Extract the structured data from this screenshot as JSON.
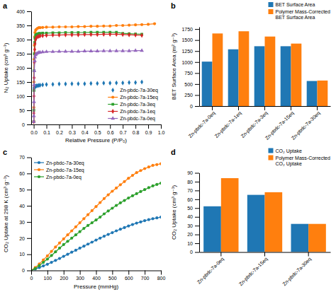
{
  "chart_data": [
    {
      "type": "line",
      "title": "a",
      "x_label": "Relative Pressure (P/P₀)",
      "y_label": "N₂ Uptake (cm³ g⁻¹)",
      "xlim": [
        -0.02,
        1.0
      ],
      "ylim": [
        0,
        400
      ],
      "xticks": [
        {
          "value": 0,
          "label": "0.0"
        },
        0.1,
        0.2,
        0.3,
        0.4,
        0.5,
        0.6,
        0.7,
        0.8,
        0.9,
        {
          "value": 1,
          "label": "1.0"
        }
      ],
      "yticks": [
        0,
        50,
        100,
        150,
        200,
        250,
        300,
        350,
        400
      ],
      "legend": "lower right",
      "series": [
        {
          "name": "Zn-pbdc-7a-30eq",
          "type": "scatter",
          "marker": "diamond",
          "x": [
            0.001,
            0.002,
            0.003,
            0.005,
            0.008,
            0.01,
            0.015,
            0.02,
            0.03,
            0.04,
            0.05,
            0.07,
            0.1,
            0.15,
            0.2,
            0.25,
            0.3,
            0.35,
            0.4,
            0.45,
            0.5,
            0.55,
            0.6,
            0.65,
            0.7,
            0.75,
            0.8,
            0.85
          ],
          "values": [
            120,
            127,
            130,
            132,
            133,
            134,
            135,
            136,
            137,
            138,
            139,
            140,
            141,
            142,
            143,
            143,
            144,
            144,
            144,
            145,
            145,
            146,
            146,
            147,
            147,
            148,
            148,
            150
          ]
        },
        {
          "name": "Zn-pbdc-7a-15eq",
          "marker": "circle",
          "x": [
            0.0005,
            0.001,
            0.002,
            0.003,
            0.005,
            0.008,
            0.01,
            0.015,
            0.02,
            0.03,
            0.04,
            0.05,
            0.07,
            0.1,
            0.15,
            0.2,
            0.25,
            0.3,
            0.35,
            0.4,
            0.45,
            0.5,
            0.55,
            0.6,
            0.65,
            0.7,
            0.75,
            0.8,
            0.85,
            0.9,
            0.95
          ],
          "values": [
            10,
            60,
            150,
            230,
            280,
            310,
            325,
            333,
            336,
            340,
            342,
            342,
            343,
            344,
            344,
            345,
            345,
            345,
            346,
            346,
            347,
            347,
            348,
            348,
            350,
            350,
            351,
            352,
            353,
            354,
            356
          ]
        },
        {
          "name": "Zn-pbdc-7a-3eq",
          "marker": "square",
          "x": [
            0.0005,
            0.001,
            0.002,
            0.003,
            0.005,
            0.008,
            0.01,
            0.015,
            0.02,
            0.03,
            0.04,
            0.05,
            0.07,
            0.1,
            0.15,
            0.2,
            0.25,
            0.3,
            0.35,
            0.4,
            0.45,
            0.5,
            0.55,
            0.6,
            0.65,
            0.7,
            0.75,
            0.8,
            0.85
          ],
          "values": [
            10,
            50,
            120,
            190,
            250,
            290,
            305,
            315,
            318,
            320,
            322,
            322,
            323,
            323,
            324,
            324,
            325,
            325,
            325,
            325,
            326,
            326,
            326,
            326,
            326,
            322,
            321,
            320,
            319
          ]
        },
        {
          "name": "Zn-pbdc-7a-1eq",
          "marker": "diamond",
          "x": [
            0.0005,
            0.001,
            0.002,
            0.003,
            0.005,
            0.008,
            0.01,
            0.015,
            0.02,
            0.03,
            0.04,
            0.05,
            0.07,
            0.1,
            0.15,
            0.2,
            0.25,
            0.3,
            0.35,
            0.4,
            0.45,
            0.5,
            0.55,
            0.6,
            0.65,
            0.7,
            0.75,
            0.8,
            0.85
          ],
          "values": [
            10,
            40,
            100,
            165,
            220,
            265,
            285,
            300,
            306,
            310,
            312,
            313,
            314,
            315,
            316,
            316,
            317,
            317,
            317,
            318,
            318,
            318,
            319,
            319,
            319,
            318,
            317,
            316,
            315
          ]
        },
        {
          "name": "Zn-pbdc-7a-0eq",
          "marker": "triangle",
          "x": [
            0.0005,
            0.001,
            0.002,
            0.003,
            0.005,
            0.008,
            0.01,
            0.015,
            0.02,
            0.03,
            0.04,
            0.05,
            0.07,
            0.1,
            0.15,
            0.2,
            0.25,
            0.3,
            0.35,
            0.4,
            0.45,
            0.5,
            0.55,
            0.6,
            0.65,
            0.7,
            0.75,
            0.8,
            0.85
          ],
          "values": [
            10,
            30,
            80,
            140,
            190,
            225,
            238,
            246,
            250,
            252,
            254,
            255,
            256,
            257,
            257,
            258,
            258,
            258,
            258,
            259,
            259,
            259,
            260,
            260,
            260,
            260,
            260,
            261,
            261
          ]
        }
      ]
    },
    {
      "type": "bar",
      "title": "b",
      "y_label": "BET Surface Area (m² g⁻¹)",
      "ylim": [
        0,
        1800
      ],
      "yticks": [
        0,
        250,
        500,
        750,
        1000,
        1250,
        1500,
        1750
      ],
      "categories": [
        "Zn-pbdc-7a-0eq",
        "Zn-pbdc-7a-1eq",
        "Zn-pbdc-7a-3eq",
        "Zn-pbdc-7a-15eq",
        "Zn-pbdc-7a-30eq"
      ],
      "legend": "upper right",
      "series": [
        {
          "name": "BET Surface Area",
          "values": [
            1010,
            1290,
            1360,
            1360,
            570
          ]
        },
        {
          "name": "Polymer Mass-Corrected\nBET Surface Area",
          "values": [
            1650,
            1700,
            1580,
            1420,
            580
          ]
        }
      ]
    },
    {
      "type": "line",
      "title": "c",
      "x_label": "Pressure (mmHg)",
      "y_label": "CO₂ Uptake at 298 K (cm³ g⁻¹)",
      "xlim": [
        0,
        800
      ],
      "ylim": [
        0,
        70
      ],
      "xticks": [
        0,
        100,
        200,
        300,
        400,
        500,
        600,
        700,
        800
      ],
      "yticks": [
        0,
        10,
        20,
        30,
        40,
        50,
        60,
        70
      ],
      "legend": "upper left",
      "series": [
        {
          "name": "Zn-pbdc-7a-30eq",
          "marker": "circle",
          "x": [
            0,
            25,
            50,
            75,
            100,
            125,
            150,
            175,
            200,
            225,
            250,
            275,
            300,
            325,
            350,
            375,
            400,
            425,
            450,
            475,
            500,
            525,
            550,
            575,
            600,
            625,
            650,
            675,
            700,
            725,
            750,
            775,
            800
          ],
          "values": [
            0,
            0.8,
            1.8,
            2.8,
            3.8,
            5.0,
            6.2,
            7.4,
            8.7,
            10.0,
            11.3,
            12.5,
            13.8,
            15.0,
            16.3,
            17.5,
            18.8,
            20.0,
            21.2,
            22.3,
            23.4,
            24.5,
            25.5,
            26.5,
            27.5,
            28.4,
            29.3,
            30.0,
            30.8,
            31.4,
            32.0,
            32.5,
            33.0
          ]
        },
        {
          "name": "Zn-pbdc-7a-15eq",
          "marker": "circle",
          "x": [
            0,
            25,
            50,
            75,
            100,
            125,
            150,
            175,
            200,
            225,
            250,
            275,
            300,
            325,
            350,
            375,
            400,
            425,
            450,
            475,
            500,
            525,
            550,
            575,
            600,
            625,
            650,
            675,
            700,
            725,
            750,
            775,
            800
          ],
          "values": [
            0,
            1.8,
            4.0,
            6.5,
            9.0,
            11.8,
            14.5,
            17.0,
            19.5,
            22.0,
            24.5,
            27.0,
            29.5,
            32.0,
            34.5,
            37.0,
            39.5,
            42.0,
            44.5,
            46.8,
            49.0,
            51.0,
            53.0,
            55.0,
            57.0,
            58.8,
            60.5,
            61.8,
            63.0,
            64.0,
            65.0,
            65.5,
            66.0
          ]
        },
        {
          "name": "Zn-pbdc-7a-0eq",
          "marker": "circle",
          "x": [
            0,
            25,
            50,
            75,
            100,
            125,
            150,
            175,
            200,
            225,
            250,
            275,
            300,
            325,
            350,
            375,
            400,
            425,
            450,
            475,
            500,
            525,
            550,
            575,
            600,
            625,
            650,
            675,
            700,
            725,
            750,
            775,
            800
          ],
          "values": [
            0,
            1.2,
            3.0,
            5.0,
            7.0,
            9.2,
            11.5,
            13.8,
            16.0,
            18.0,
            20.0,
            22.0,
            24.0,
            26.0,
            27.8,
            29.5,
            31.2,
            33.0,
            35.0,
            36.8,
            38.5,
            40.2,
            41.8,
            43.3,
            44.8,
            46.2,
            47.5,
            48.8,
            50.0,
            51.2,
            52.3,
            53.2,
            54.0
          ]
        }
      ]
    },
    {
      "type": "bar",
      "title": "d",
      "y_label": "CO₂ Uptake (cm³ g⁻¹)",
      "ylim": [
        0,
        90
      ],
      "yticks": [
        0,
        10,
        20,
        30,
        40,
        50,
        60,
        70,
        80,
        90
      ],
      "categories": [
        "Zn-pbdc-7a-0eq",
        "Zn-pbdc-7a-15eq",
        "Zn-pbdc-7a-30eq"
      ],
      "legend": "upper right",
      "series": [
        {
          "name": "CO₂ Uptake",
          "values": [
            52,
            65,
            32
          ]
        },
        {
          "name": "Polymer Mass-Corrected\nCO₂ Uptake",
          "values": [
            84,
            68,
            32
          ]
        }
      ]
    }
  ]
}
